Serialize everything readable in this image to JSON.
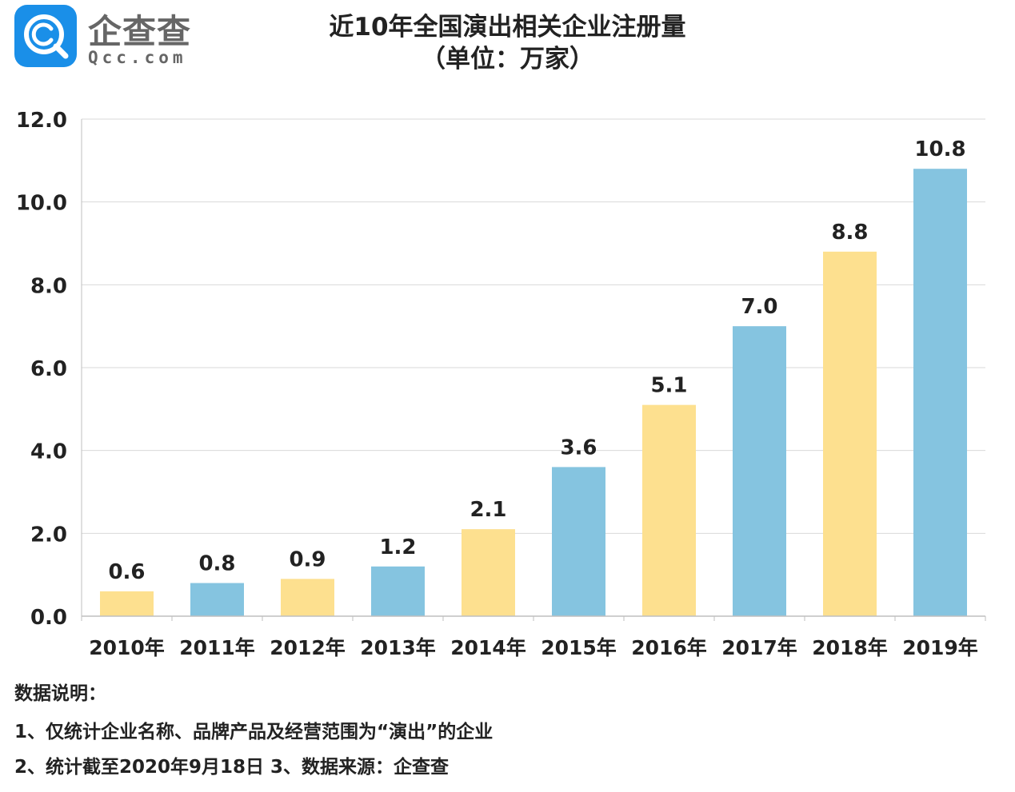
{
  "logo": {
    "name": "企查查",
    "domain": "Qcc.com",
    "badge_color": "#1a8fe8"
  },
  "chart_data": {
    "type": "bar",
    "title": "近10年全国演出相关企业注册量",
    "subtitle": "（单位：万家）",
    "categories": [
      "2010年",
      "2011年",
      "2012年",
      "2013年",
      "2014年",
      "2015年",
      "2016年",
      "2017年",
      "2018年",
      "2019年"
    ],
    "values": [
      0.6,
      0.8,
      0.9,
      1.2,
      2.1,
      3.6,
      5.1,
      7.0,
      8.8,
      10.8
    ],
    "value_labels": [
      "0.6",
      "0.8",
      "0.9",
      "1.2",
      "2.1",
      "3.6",
      "5.1",
      "7.0",
      "8.8",
      "10.8"
    ],
    "bar_colors": [
      "#fde08f",
      "#85c4e0",
      "#fde08f",
      "#85c4e0",
      "#fde08f",
      "#85c4e0",
      "#fde08f",
      "#85c4e0",
      "#fde08f",
      "#85c4e0"
    ],
    "ylim": [
      0,
      12
    ],
    "yticks": [
      "0.0",
      "2.0",
      "4.0",
      "6.0",
      "8.0",
      "10.0",
      "12.0"
    ],
    "ytick_values": [
      0,
      2,
      4,
      6,
      8,
      10,
      12
    ],
    "grid": true,
    "xlabel": "",
    "ylabel": ""
  },
  "notes": {
    "heading": "数据说明：",
    "line1": "1、仅统计企业名称、品牌产品及经营范围为“演出”的企业",
    "line2": "2、统计截至2020年9月18日   3、数据来源：企查查"
  }
}
